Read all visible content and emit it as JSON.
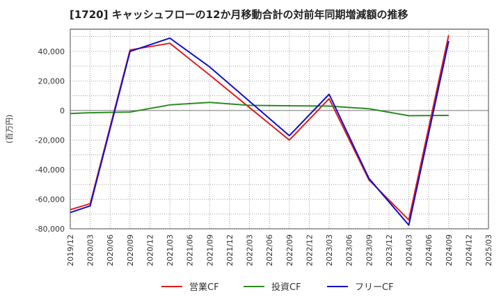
{
  "chart_data": {
    "type": "line",
    "title": "[1720]  キャッシュフローの12か月移動合計の対前年同期増減額の推移",
    "ylabel": "(百万円)",
    "xlabel": "",
    "ylim": [
      -80000,
      55000
    ],
    "yticks": [
      -80000,
      -60000,
      -40000,
      -20000,
      0,
      20000,
      40000
    ],
    "ytick_labels": [
      "-80,000",
      "-60,000",
      "-40,000",
      "-20,000",
      "0",
      "20,000",
      "40,000"
    ],
    "categories": [
      "2019/12",
      "2020/03",
      "2020/06",
      "2020/09",
      "2020/12",
      "2021/03",
      "2021/06",
      "2021/09",
      "2021/12",
      "2022/03",
      "2022/06",
      "2022/09",
      "2022/12",
      "2023/03",
      "2023/06",
      "2023/09",
      "2023/12",
      "2024/03",
      "2024/06",
      "2024/09",
      "2024/12",
      "2025/03"
    ],
    "series": [
      {
        "name": "営業CF",
        "color": "#e31a1c",
        "values": [
          -67000,
          -63000,
          null,
          41000,
          null,
          45500,
          null,
          24000,
          null,
          null,
          null,
          -20000,
          null,
          8000,
          null,
          -47000,
          null,
          -74000,
          null,
          51000,
          null,
          null
        ]
      },
      {
        "name": "投資CF",
        "color": "#2e8b22",
        "values": [
          -2000,
          -1500,
          null,
          -1000,
          null,
          3800,
          null,
          5500,
          null,
          3500,
          null,
          3200,
          null,
          3000,
          null,
          1200,
          null,
          -3500,
          null,
          -3300,
          null,
          null
        ]
      },
      {
        "name": "フリーCF",
        "color": "#1010cc",
        "values": [
          -69000,
          -64500,
          null,
          40000,
          null,
          49000,
          null,
          29500,
          null,
          null,
          null,
          -17000,
          null,
          11000,
          null,
          -46000,
          null,
          -77500,
          null,
          47000,
          null,
          null
        ]
      }
    ]
  }
}
